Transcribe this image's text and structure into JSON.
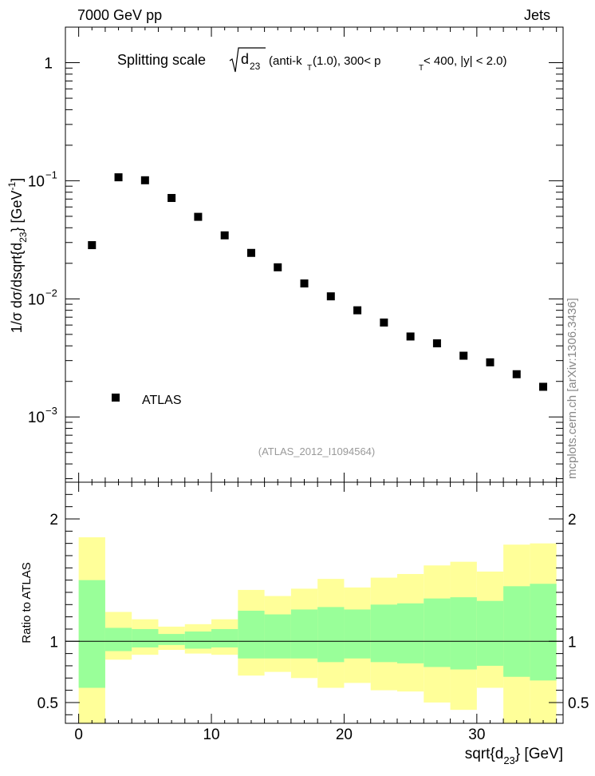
{
  "header": {
    "left": "7000 GeV pp",
    "right": "Jets"
  },
  "side_label": "mcplots.cern.ch [arXiv:1306.3436]",
  "chart_data": [
    {
      "type": "scatter",
      "title_main": "Splitting scale",
      "title_rest": "(anti-k",
      "title_rest2": "(1.0), 300< p",
      "title_rest3": " < 400, |y| < 2.0)",
      "title_sub_d": "d",
      "title_sub_23": "23",
      "title_sub_T": "T",
      "analysis_id": "(ATLAS_2012_I1094564)",
      "ylabel": "1/σ dσ/dsqrt{d",
      "ylabel_sub": "23",
      "ylabel_end": "} [GeV",
      "ylabel_sup": "-1",
      "ylabel_close": "]",
      "yscale": "log",
      "ylim": [
        0.00028,
        2.0
      ],
      "xlim": [
        -1,
        36.5
      ],
      "y_ticks": [
        {
          "value": 1,
          "label": "1"
        },
        {
          "value": 0.1,
          "label": "10",
          "exp": "−1"
        },
        {
          "value": 0.01,
          "label": "10",
          "exp": "−2"
        },
        {
          "value": 0.001,
          "label": "10",
          "exp": "−3"
        }
      ],
      "legend": {
        "label": "ATLAS",
        "position": "bottom-left"
      },
      "series": [
        {
          "name": "ATLAS",
          "x": [
            1,
            3,
            5,
            7,
            9,
            11,
            13,
            15,
            17,
            19,
            21,
            23,
            25,
            27,
            29,
            31,
            33,
            35
          ],
          "y": [
            0.0285,
            0.107,
            0.101,
            0.0715,
            0.0495,
            0.0345,
            0.0245,
            0.0185,
            0.0135,
            0.0105,
            0.008,
            0.0063,
            0.0048,
            0.0042,
            0.0033,
            0.0029,
            0.0023,
            0.0018
          ]
        }
      ]
    },
    {
      "type": "area",
      "ylabel": "Ratio to ATLAS",
      "xlabel": "sqrt{d",
      "xlabel_sub": "23",
      "xlabel_end": "} [GeV]",
      "ylim": [
        0.33,
        2.3
      ],
      "xlim": [
        -1,
        36.5
      ],
      "x_ticks": [
        0,
        10,
        20,
        30
      ],
      "y_ticks": [
        0.5,
        1,
        2
      ],
      "y_tick_labels": [
        "0.5",
        "1",
        "2"
      ],
      "bin_edges": [
        0,
        2,
        4,
        6,
        8,
        10,
        12,
        14,
        16,
        18,
        20,
        22,
        24,
        26,
        28,
        30,
        32,
        34,
        36
      ],
      "bands": [
        {
          "name": "total uncertainty",
          "color": "#ffff99",
          "lo": [
            0.33,
            0.85,
            0.89,
            0.93,
            0.9,
            0.89,
            0.72,
            0.75,
            0.7,
            0.62,
            0.66,
            0.6,
            0.59,
            0.5,
            0.44,
            0.62,
            0.33,
            0.33
          ],
          "hi": [
            1.85,
            1.24,
            1.18,
            1.12,
            1.14,
            1.18,
            1.42,
            1.37,
            1.43,
            1.51,
            1.44,
            1.52,
            1.55,
            1.62,
            1.65,
            1.57,
            1.79,
            1.8
          ]
        },
        {
          "name": "stat uncertainty",
          "color": "#99ff99",
          "lo": [
            0.62,
            0.92,
            0.95,
            0.97,
            0.94,
            0.95,
            0.86,
            0.86,
            0.86,
            0.83,
            0.86,
            0.83,
            0.82,
            0.79,
            0.77,
            0.8,
            0.71,
            0.68
          ],
          "hi": [
            1.5,
            1.11,
            1.1,
            1.06,
            1.08,
            1.1,
            1.25,
            1.22,
            1.26,
            1.28,
            1.26,
            1.3,
            1.31,
            1.35,
            1.36,
            1.33,
            1.45,
            1.47
          ]
        }
      ],
      "reference_line": 1
    }
  ]
}
